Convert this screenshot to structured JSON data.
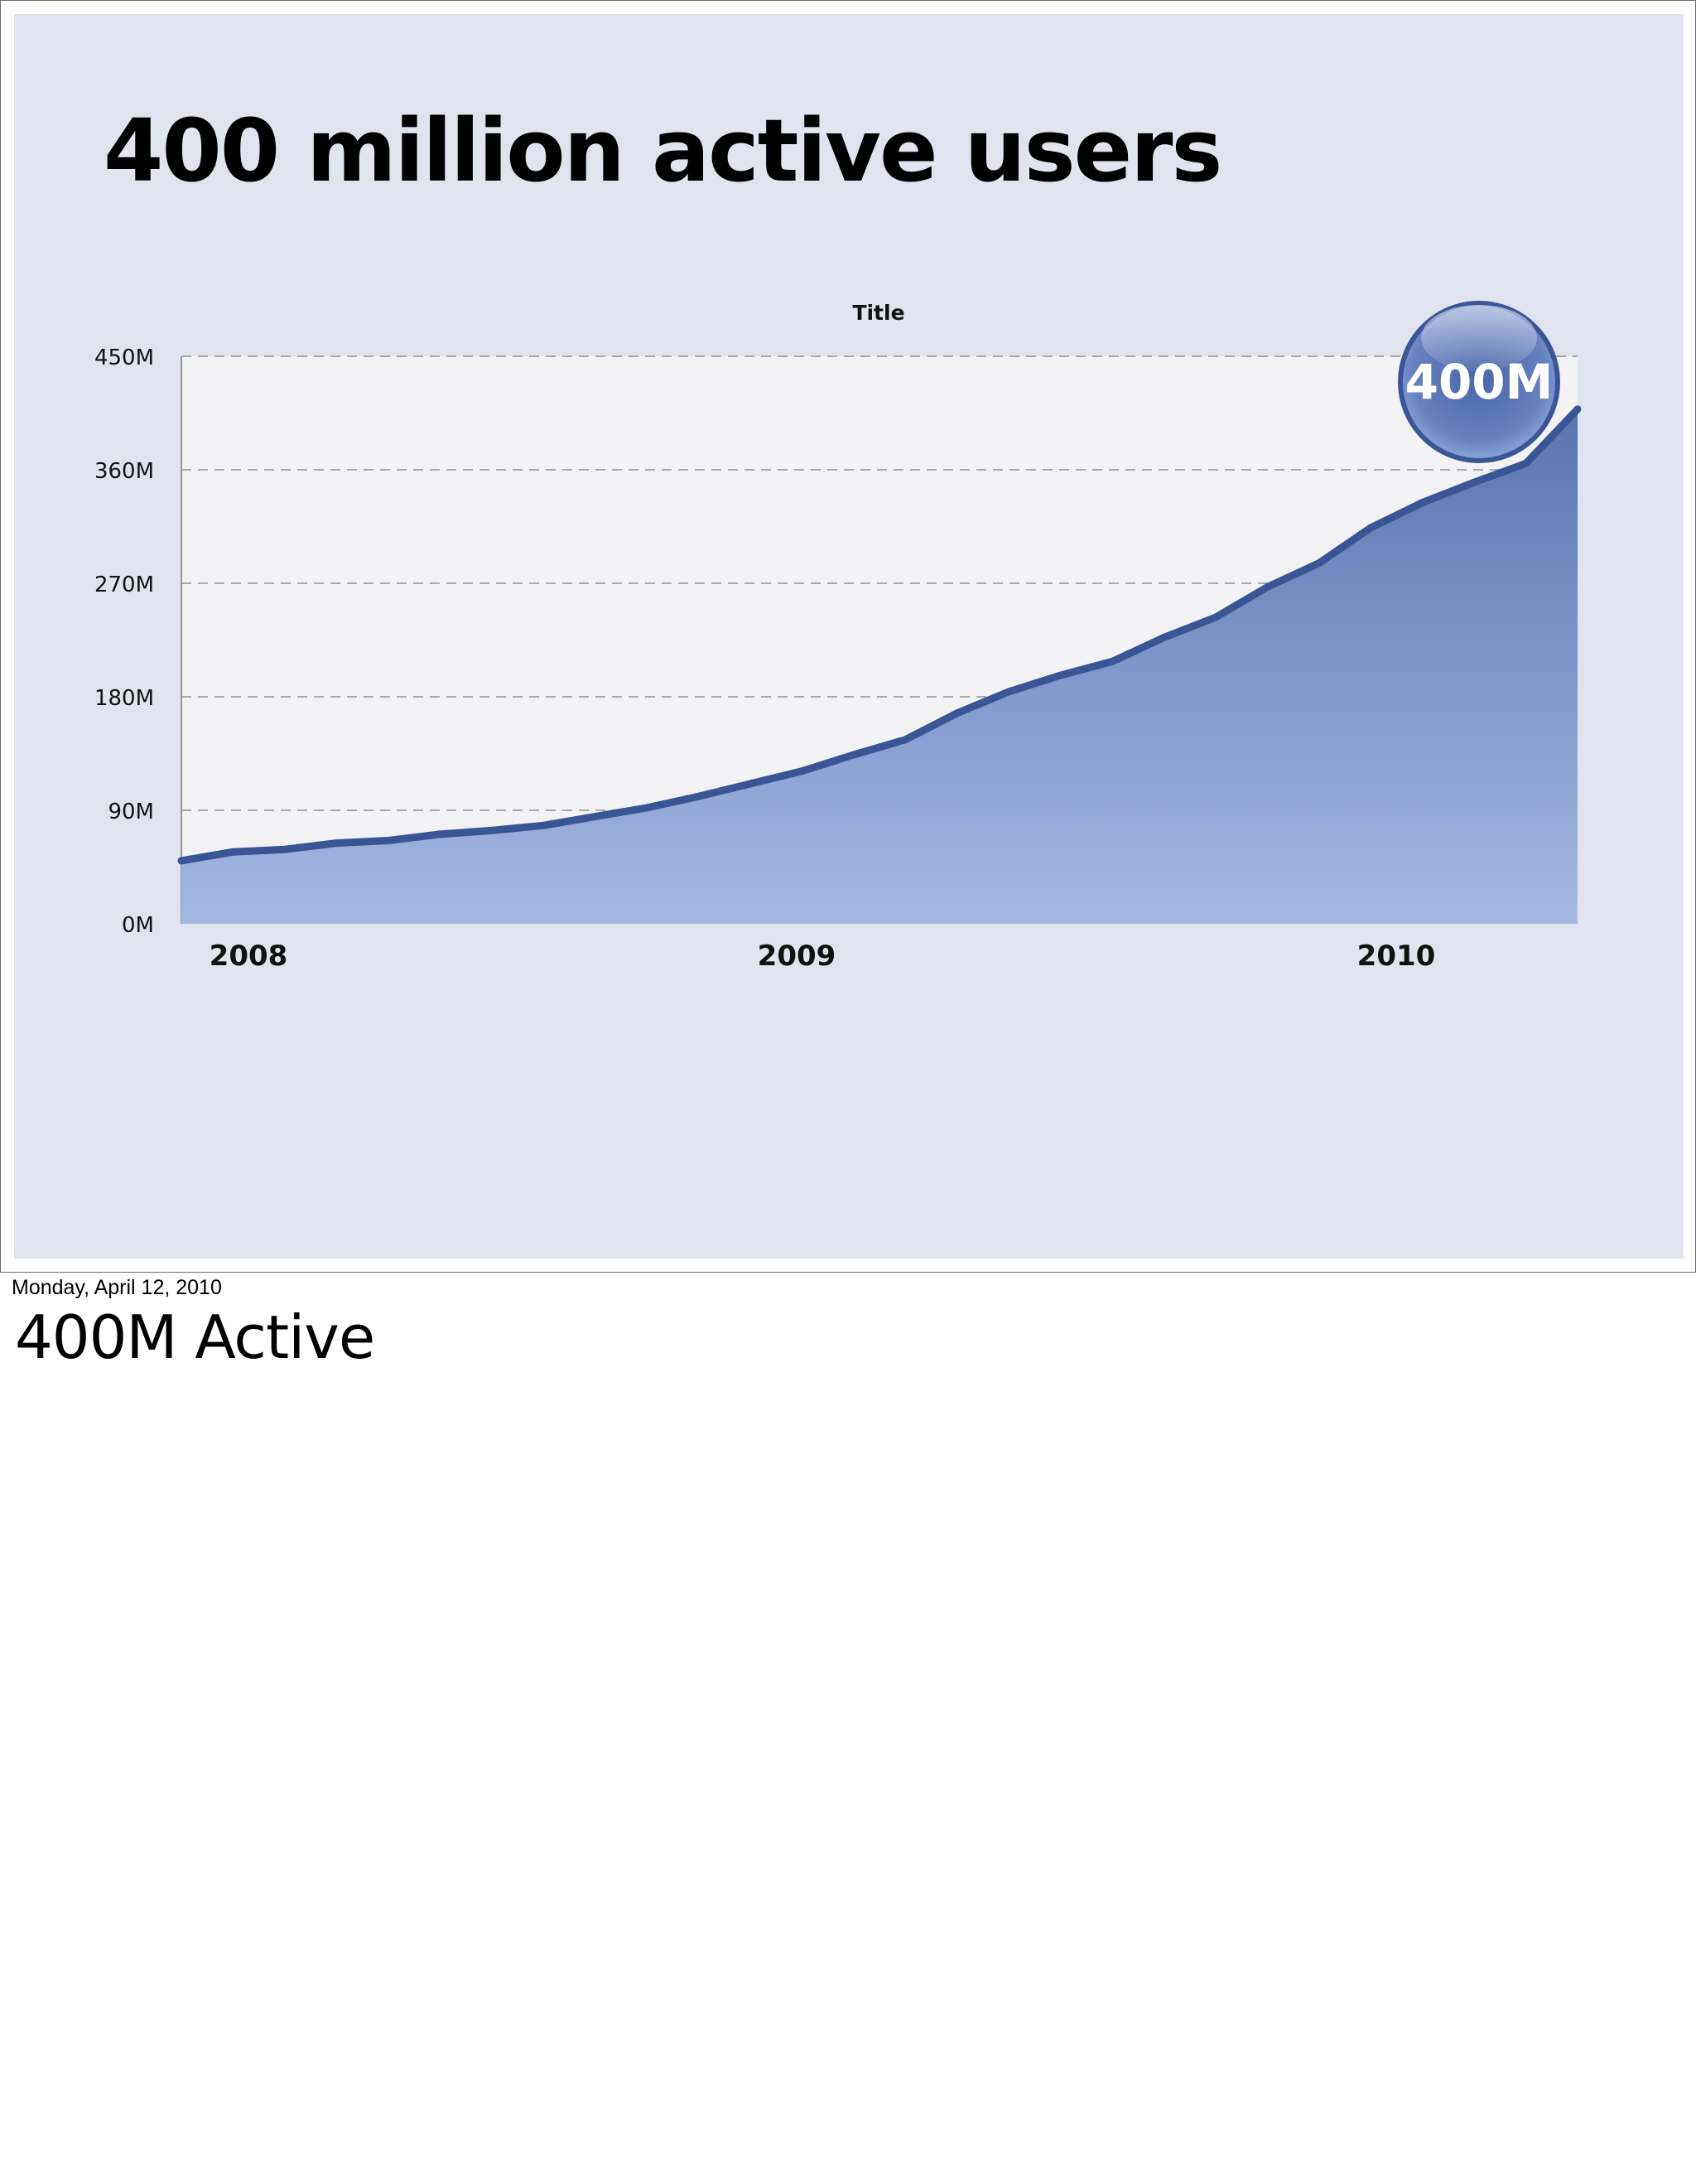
{
  "slide": {
    "title": "400 million active users"
  },
  "chart_data": {
    "type": "area",
    "title": "Title",
    "xlabel": "",
    "ylabel": "",
    "x_tick_labels": [
      "2008",
      "2009",
      "2010"
    ],
    "y_tick_labels": [
      "0M",
      "90M",
      "180M",
      "270M",
      "360M",
      "450M"
    ],
    "ylim": [
      0,
      450
    ],
    "y_unit": "M",
    "grid": true,
    "legend": "none",
    "x": [
      0,
      1,
      2,
      3,
      4,
      5,
      6,
      7,
      8,
      9,
      10,
      11,
      12,
      13,
      14,
      15,
      16,
      17,
      18,
      19,
      20,
      21,
      22,
      23,
      24,
      25,
      26
    ],
    "values": [
      50,
      57,
      59,
      64,
      66,
      71,
      74,
      78,
      85,
      92,
      101,
      111,
      121,
      134,
      146,
      167,
      184,
      197,
      208,
      227,
      243,
      267,
      286,
      314,
      334,
      350,
      365
    ],
    "final_value": 408,
    "callout": {
      "label": "400M",
      "value": 400
    },
    "colors": {
      "line": "#3a5596",
      "fill_top": "#5a74b0",
      "fill_bottom": "#a6b8e4",
      "plot_bg": "#f2f1f4",
      "grid": "#a9a9a9",
      "bubble": "#5a76b6"
    }
  },
  "footer": {
    "date": "Monday, April 12, 2010",
    "notes": "400M Active"
  }
}
